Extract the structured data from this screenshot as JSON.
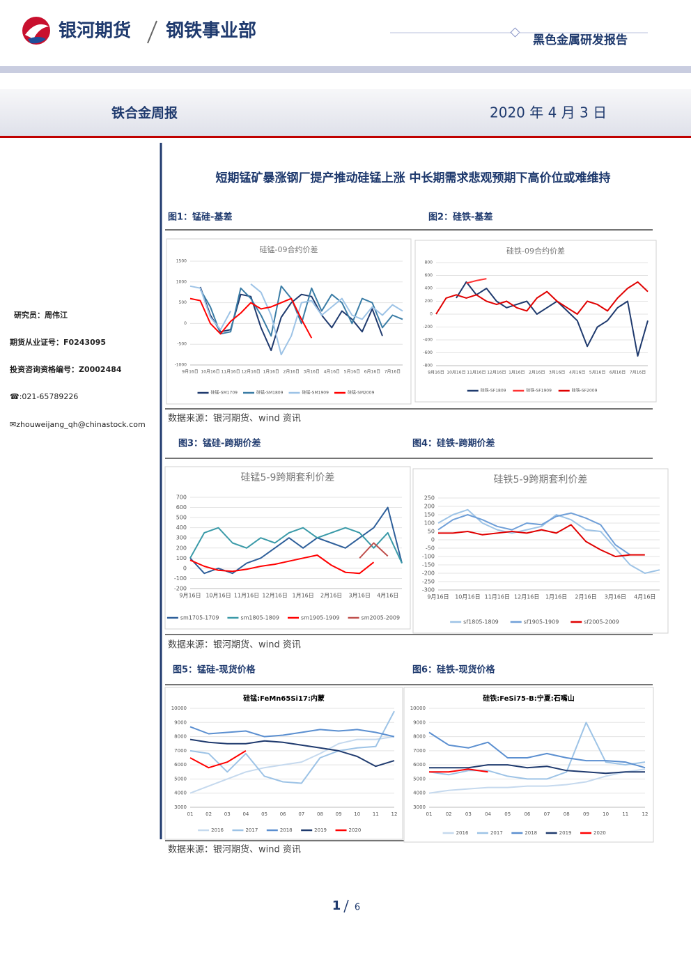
{
  "header": {
    "company": "银河期货",
    "division": "钢铁事业部",
    "report_type": "黑色金属研发报告"
  },
  "title_bar": {
    "name": "铁合金周报",
    "date": "2020 年 4 月 3 日"
  },
  "sidebar": {
    "researcher": "研究员：周伟江",
    "license": "期货从业证号：F0243095",
    "consult": "投资咨询资格编号：Z0002484",
    "phone": "☎:021-65789226",
    "email": "✉zhouweijang_qh@chinastock.com"
  },
  "headline": "短期锰矿暴涨钢厂提产推动硅锰上涨  中长期需求悲观预期下高价位或难维持",
  "sources": [
    "数据来源：银河期货、wind 资讯",
    "数据来源：银河期货、wind 资讯",
    "数据来源：银河期货、wind 资讯"
  ],
  "footer": {
    "page": "1",
    "pages": "6"
  },
  "chart_data": [
    {
      "type": "line",
      "caption": "图1：锰硅-基差",
      "title": "硅锰-09合约价差",
      "categories": [
        "9月16日",
        null,
        "10月16日",
        null,
        "11月16日",
        null,
        "12月16日",
        null,
        "1月16日",
        null,
        "2月16日",
        null,
        "3月16日",
        null,
        "4月16日",
        null,
        "5月16日",
        null,
        "6月16日",
        null,
        "7月16日",
        null
      ],
      "ylim": [
        -1000,
        1500
      ],
      "yticks": [
        -1000,
        -500,
        0,
        500,
        1000,
        1500
      ],
      "grid": true,
      "series": [
        {
          "name": "硅锰-SM1709",
          "color": "#1f3a6e",
          "values": [
            null,
            880,
            200,
            -200,
            -150,
            700,
            650,
            -100,
            -650,
            150,
            500,
            700,
            650,
            200,
            -100,
            300,
            100,
            -200,
            350,
            -300,
            null,
            null
          ]
        },
        {
          "name": "硅锰-SM1809",
          "color": "#3a7ca5",
          "values": [
            null,
            820,
            400,
            -250,
            -200,
            850,
            600,
            200,
            -300,
            900,
            600,
            0,
            850,
            300,
            700,
            500,
            0,
            600,
            500,
            -100,
            200,
            100
          ]
        },
        {
          "name": "硅锰-SM1909",
          "color": "#9dc3e6",
          "values": [
            900,
            850,
            150,
            -150,
            300,
            null,
            950,
            750,
            200,
            -750,
            -300,
            500,
            550,
            200,
            400,
            600,
            200,
            100,
            400,
            200,
            450,
            300
          ]
        },
        {
          "name": "硅锰-SM2009",
          "color": "#ff0000",
          "values": [
            600,
            550,
            0,
            -250,
            50,
            250,
            500,
            350,
            400,
            500,
            600,
            100,
            -350,
            null,
            null,
            null,
            null,
            null,
            null,
            null,
            null,
            null
          ]
        }
      ]
    },
    {
      "type": "line",
      "caption": "图2：硅铁-基差",
      "title": "硅铁-09合约价差",
      "categories": [
        "9月16日",
        null,
        "10月16日",
        null,
        "11月16日",
        null,
        "12月16日",
        null,
        "1月16日",
        null,
        "2月16日",
        null,
        "3月16日",
        null,
        "4月16日",
        null,
        "5月16日",
        null,
        "6月16日",
        null,
        "7月16日",
        null
      ],
      "ylim": [
        -800,
        800
      ],
      "yticks": [
        -800,
        -600,
        -400,
        -200,
        0,
        200,
        400,
        600,
        800
      ],
      "grid": true,
      "series": [
        {
          "name": "硅铁-SF1809",
          "color": "#1f3a6e",
          "values": [
            null,
            null,
            250,
            500,
            300,
            400,
            200,
            100,
            150,
            200,
            0,
            100,
            200,
            50,
            -100,
            -500,
            -200,
            -100,
            100,
            200,
            -650,
            -100
          ]
        },
        {
          "name": "硅铁-SF1909",
          "color": "#ff3333",
          "values": [
            null,
            null,
            null,
            480,
            520,
            550,
            null,
            null,
            null,
            null,
            null,
            null,
            null,
            null,
            null,
            null,
            null,
            null,
            null,
            null,
            null,
            null
          ]
        },
        {
          "name": "硅铁-SF2009",
          "color": "#e00000",
          "values": [
            0,
            250,
            300,
            250,
            300,
            200,
            150,
            200,
            100,
            50,
            250,
            350,
            200,
            100,
            0,
            200,
            150,
            50,
            250,
            400,
            500,
            350
          ]
        }
      ]
    },
    {
      "type": "line",
      "caption": "图3：锰硅-跨期价差",
      "title": "硅锰5-9跨期套利价差",
      "categories": [
        "9月16日",
        null,
        "10月16日",
        null,
        "11月16日",
        null,
        "12月16日",
        null,
        "1月16日",
        null,
        "2月16日",
        null,
        "3月16日",
        null,
        "4月16日",
        null
      ],
      "ylim": [
        -200,
        700
      ],
      "yticks": [
        -200,
        -100,
        0,
        100,
        200,
        300,
        400,
        500,
        600,
        700
      ],
      "grid": true,
      "series": [
        {
          "name": "sm1705-1709",
          "color": "#2e5f9a",
          "values": [
            100,
            -50,
            0,
            -50,
            50,
            100,
            200,
            300,
            200,
            300,
            250,
            200,
            300,
            400,
            600,
            50
          ]
        },
        {
          "name": "sm1805-1809",
          "color": "#3a9aa8",
          "values": [
            100,
            350,
            400,
            250,
            200,
            300,
            250,
            350,
            400,
            300,
            350,
            400,
            350,
            200,
            350,
            50
          ]
        },
        {
          "name": "sm1905-1909",
          "color": "#ff0000",
          "values": [
            80,
            20,
            -20,
            -30,
            -10,
            20,
            40,
            70,
            100,
            130,
            30,
            -40,
            -50,
            60,
            null,
            null
          ]
        },
        {
          "name": "sm2005-2009",
          "color": "#c0504d",
          "values": [
            null,
            null,
            null,
            null,
            null,
            null,
            null,
            null,
            null,
            null,
            null,
            null,
            100,
            250,
            120,
            null
          ]
        }
      ]
    },
    {
      "type": "line",
      "caption": "图4：硅铁-跨期价差",
      "title": "硅铁5-9跨期套利价差",
      "categories": [
        "9月16日",
        null,
        "10月16日",
        null,
        "11月16日",
        null,
        "12月16日",
        null,
        "1月16日",
        null,
        "2月16日",
        null,
        "3月16日",
        null,
        "4月16日",
        null
      ],
      "ylim": [
        -300,
        250
      ],
      "yticks": [
        -300,
        -250,
        -200,
        -150,
        -100,
        -50,
        0,
        50,
        100,
        150,
        200,
        250
      ],
      "grid": true,
      "series": [
        {
          "name": "sf1805-1809",
          "color": "#9dc3e6",
          "values": [
            100,
            150,
            180,
            100,
            60,
            40,
            60,
            80,
            150,
            120,
            60,
            50,
            -50,
            -150,
            -200,
            -180
          ]
        },
        {
          "name": "sf1905-1909",
          "color": "#6f9fd8",
          "values": [
            60,
            120,
            150,
            120,
            80,
            60,
            100,
            90,
            140,
            160,
            130,
            90,
            -30,
            -90,
            null,
            null
          ]
        },
        {
          "name": "sf2005-2009",
          "color": "#e00000",
          "values": [
            40,
            40,
            50,
            30,
            40,
            50,
            40,
            60,
            40,
            90,
            -10,
            -60,
            -100,
            -90,
            -90,
            null
          ]
        }
      ]
    },
    {
      "type": "line",
      "caption": "图5：锰硅-现货价格",
      "title": "硅锰:FeMn65Si17:内蒙",
      "categories": [
        "01",
        "02",
        "03",
        "04",
        "05",
        "06",
        "07",
        "08",
        "09",
        "10",
        "11",
        "12"
      ],
      "ylim": [
        3000,
        10000
      ],
      "yticks": [
        3000,
        4000,
        5000,
        6000,
        7000,
        8000,
        9000,
        10000
      ],
      "grid": true,
      "series": [
        {
          "name": "2016",
          "color": "#c5d9ee",
          "values": [
            4000,
            4500,
            5000,
            5500,
            5800,
            6000,
            6200,
            6800,
            7500,
            7800,
            7800,
            8000
          ]
        },
        {
          "name": "2017",
          "color": "#9dc3e6",
          "values": [
            7000,
            6800,
            5500,
            6800,
            5200,
            4800,
            4700,
            6500,
            7000,
            7200,
            7300,
            9800
          ]
        },
        {
          "name": "2018",
          "color": "#5b8fd0",
          "values": [
            8700,
            8200,
            8300,
            8400,
            8000,
            8100,
            8300,
            8500,
            8400,
            8500,
            8300,
            8000
          ]
        },
        {
          "name": "2019",
          "color": "#1f3a6e",
          "values": [
            7800,
            7600,
            7500,
            7500,
            7700,
            7600,
            7400,
            7200,
            7000,
            6600,
            5900,
            6300
          ]
        },
        {
          "name": "2020",
          "color": "#ff0000",
          "values": [
            6500,
            5800,
            6200,
            7000,
            null,
            null,
            null,
            null,
            null,
            null,
            null,
            null
          ]
        }
      ]
    },
    {
      "type": "line",
      "caption": "图6：硅铁-现货价格",
      "title": "硅铁:FeSi75-B:宁夏:石嘴山",
      "categories": [
        "01",
        "02",
        "03",
        "04",
        "05",
        "06",
        "07",
        "08",
        "09",
        "10",
        "11",
        "12"
      ],
      "ylim": [
        3000,
        10000
      ],
      "yticks": [
        3000,
        4000,
        5000,
        6000,
        7000,
        8000,
        9000,
        10000
      ],
      "grid": true,
      "series": [
        {
          "name": "2016",
          "color": "#c5d9ee",
          "values": [
            4000,
            4200,
            4300,
            4400,
            4400,
            4500,
            4500,
            4600,
            4800,
            5200,
            5500,
            5700
          ]
        },
        {
          "name": "2017",
          "color": "#9dc3e6",
          "values": [
            5500,
            5300,
            5600,
            5600,
            5200,
            5000,
            5000,
            5500,
            9000,
            6200,
            6000,
            6200
          ]
        },
        {
          "name": "2018",
          "color": "#5b8fd0",
          "values": [
            8300,
            7400,
            7200,
            7600,
            6500,
            6500,
            6800,
            6500,
            6300,
            6300,
            6200,
            5800
          ]
        },
        {
          "name": "2019",
          "color": "#1f3a6e",
          "values": [
            5800,
            5800,
            5800,
            6000,
            6000,
            5800,
            5900,
            5600,
            5500,
            5400,
            5500,
            5500
          ]
        },
        {
          "name": "2020",
          "color": "#ff0000",
          "values": [
            5500,
            5500,
            5700,
            5500,
            null,
            null,
            null,
            null,
            null,
            null,
            null,
            null
          ]
        }
      ]
    }
  ]
}
